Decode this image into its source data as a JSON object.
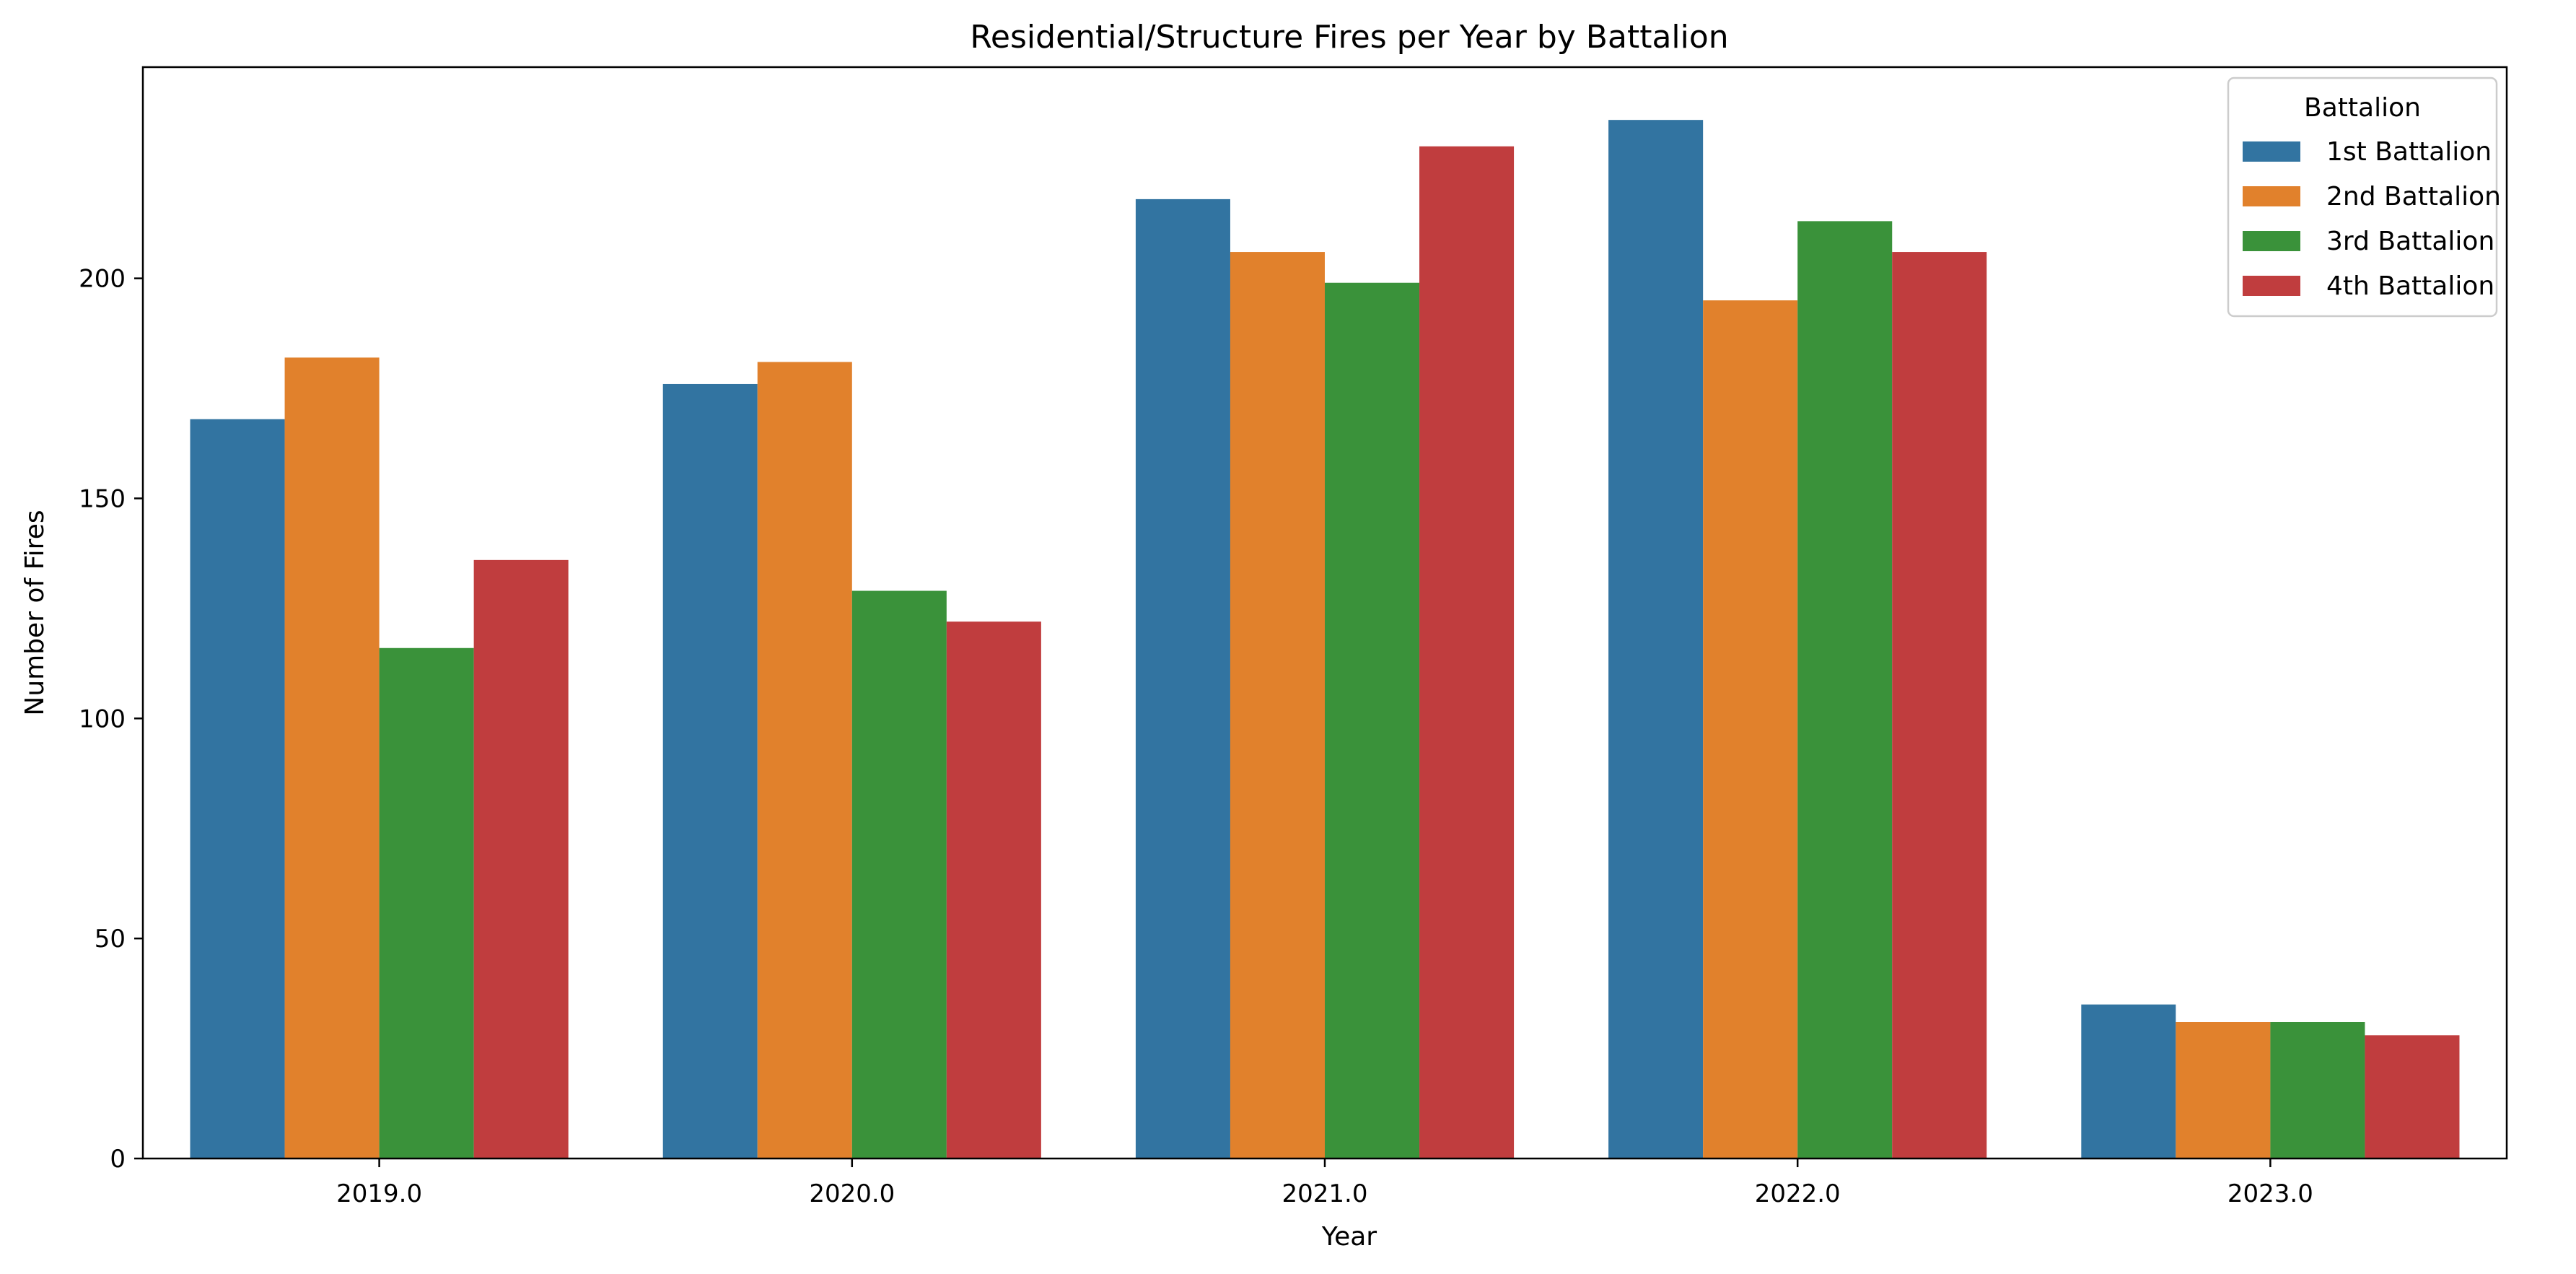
{
  "chart_data": {
    "type": "bar",
    "title": "Residential/Structure Fires per Year by Battalion",
    "xlabel": "Year",
    "ylabel": "Number of Fires",
    "categories": [
      "2019.0",
      "2020.0",
      "2021.0",
      "2022.0",
      "2023.0"
    ],
    "series": [
      {
        "name": "1st Battalion",
        "color": "#3274a1",
        "values": [
          168,
          176,
          218,
          236,
          35
        ]
      },
      {
        "name": "2nd Battalion",
        "color": "#e1812c",
        "values": [
          182,
          181,
          206,
          195,
          31
        ]
      },
      {
        "name": "3rd Battalion",
        "color": "#3a923a",
        "values": [
          116,
          129,
          199,
          213,
          31
        ]
      },
      {
        "name": "4th Battalion",
        "color": "#c03d3e",
        "values": [
          136,
          122,
          230,
          206,
          28
        ]
      }
    ],
    "ylim": [
      0,
      248
    ],
    "yticks": [
      0,
      50,
      100,
      150,
      200
    ],
    "legend": {
      "title": "Battalion",
      "placement": "top-right"
    },
    "grid": false
  }
}
